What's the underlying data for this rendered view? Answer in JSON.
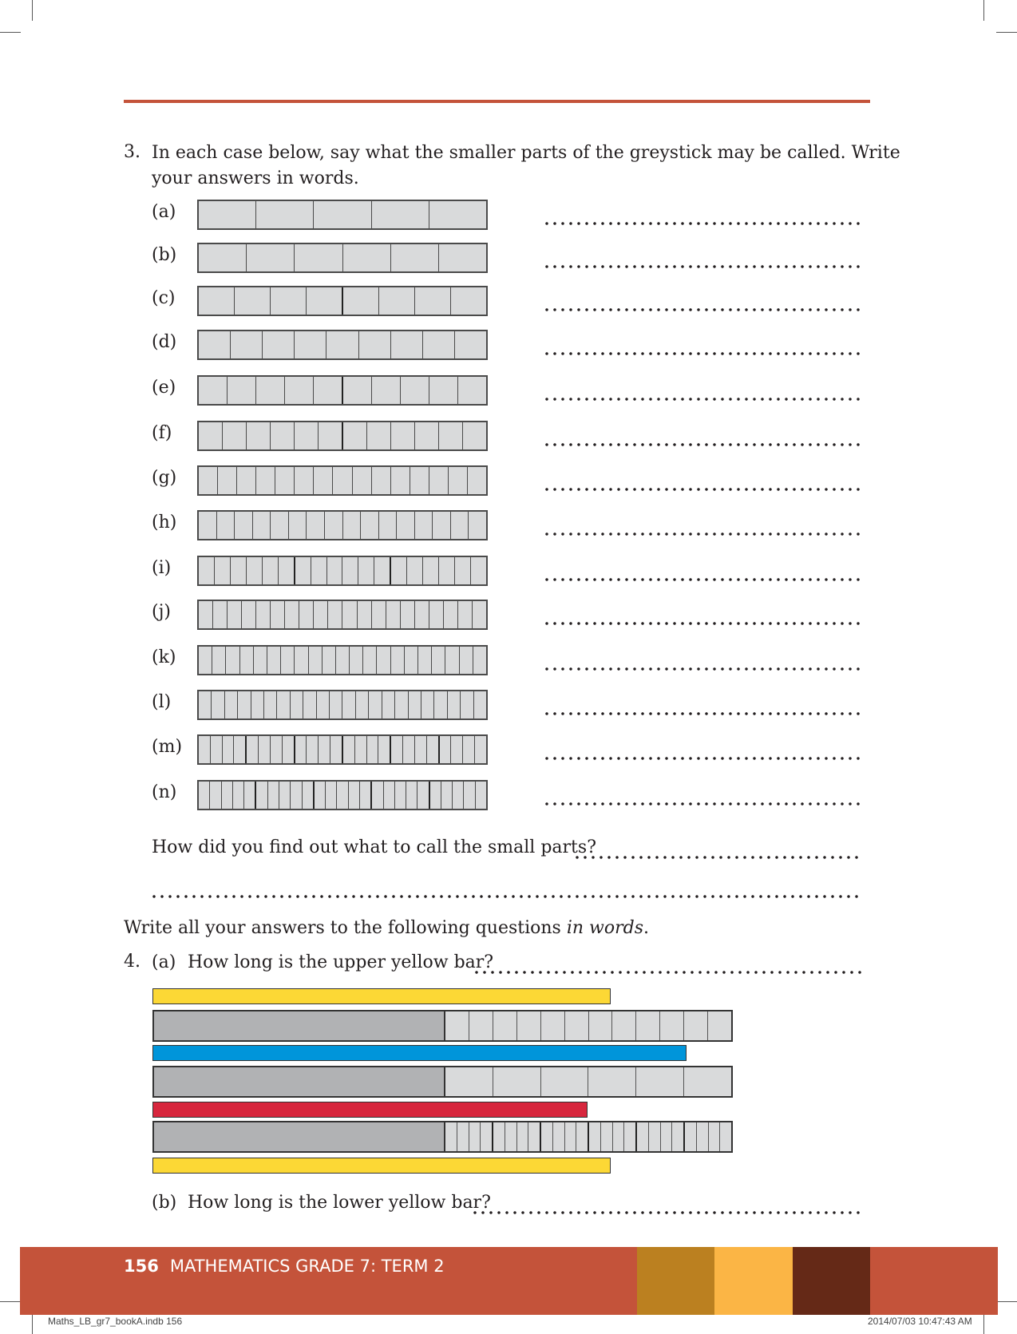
{
  "q3": {
    "number": "3.",
    "text_line1": "In each case below, say what the smaller parts of the greystick may be called. Write",
    "text_line2": "your answers in words.",
    "items": [
      {
        "label": "(a)",
        "parts": 5,
        "group": 1
      },
      {
        "label": "(b)",
        "parts": 6,
        "group": 1
      },
      {
        "label": "(c)",
        "parts": 8,
        "group": 4
      },
      {
        "label": "(d)",
        "parts": 9,
        "group": 1
      },
      {
        "label": "(e)",
        "parts": 10,
        "group": 5
      },
      {
        "label": "(f)",
        "parts": 12,
        "group": 6
      },
      {
        "label": "(g)",
        "parts": 15,
        "group": 1
      },
      {
        "label": "(h)",
        "parts": 16,
        "group": 1
      },
      {
        "label": "(i)",
        "parts": 18,
        "group": 6
      },
      {
        "label": "(j)",
        "parts": 20,
        "group": 1
      },
      {
        "label": "(k)",
        "parts": 21,
        "group": 1
      },
      {
        "label": "(l)",
        "parts": 22,
        "group": 1
      },
      {
        "label": "(m)",
        "parts": 24,
        "group": 4
      },
      {
        "label": "(n)",
        "parts": 25,
        "group": 5
      }
    ],
    "followup": "How did you find out what to call the small parts?"
  },
  "instruction": {
    "prefix": "Write all your answers to the following questions ",
    "emphasis": "in words",
    "suffix": "."
  },
  "q4": {
    "number": "4.",
    "a_label": "(a)",
    "a_text": "How long is the upper yellow bar?",
    "b_label": "(b)",
    "b_text": "How long is the lower yellow bar?",
    "bars": [
      {
        "kind": "color",
        "color": "#fcd835",
        "length_in_greysticks": 0.79
      },
      {
        "kind": "greystick",
        "parts": 12
      },
      {
        "kind": "color",
        "color": "#0095da",
        "length_in_greysticks": 0.92
      },
      {
        "kind": "greystick",
        "parts": 6
      },
      {
        "kind": "color",
        "color": "#d7263d",
        "length_in_greysticks": 0.75
      },
      {
        "kind": "greystick",
        "parts": 24
      },
      {
        "kind": "color",
        "color": "#fcd835",
        "length_in_greysticks": 0.79
      }
    ]
  },
  "footer": {
    "page_number": "156",
    "title": "MATHEMATICS GRADE 7: TERM 2",
    "accent_colors": [
      "#bb8020",
      "#fbb545",
      "#652917"
    ]
  },
  "slug": {
    "left": "Maths_LB_gr7_bookA.indb   156",
    "right": "2014/07/03   10:47:43 AM"
  }
}
